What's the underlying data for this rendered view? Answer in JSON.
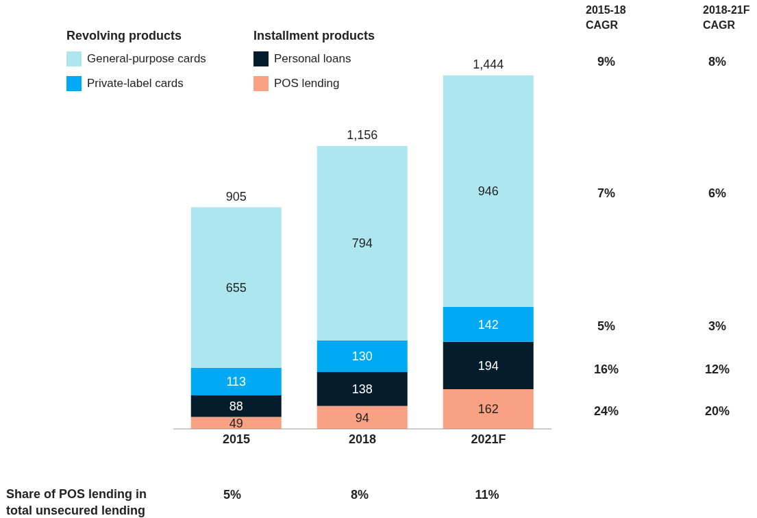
{
  "chart_data": {
    "type": "bar",
    "stacked": true,
    "data_labels": true,
    "legend": "top left",
    "categories": [
      "2015",
      "2018",
      "2021F"
    ],
    "series": [
      {
        "name": "POS lending",
        "color": "#f9a183",
        "values": [
          49,
          94,
          162
        ]
      },
      {
        "name": "Personal loans",
        "color": "#051c2c",
        "values": [
          88,
          138,
          194
        ]
      },
      {
        "name": "Private-label cards",
        "color": "#00a9f4",
        "values": [
          113,
          130,
          142
        ]
      },
      {
        "name": "General-purpose cards",
        "color": "#aee6ef",
        "values": [
          655,
          794,
          946
        ]
      }
    ],
    "totals": [
      "905",
      "1,156",
      "1,444"
    ],
    "annotations": [
      "Revolving products",
      "Installment products",
      "2015-18 CAGR",
      "2018-21F CAGR",
      "9%",
      "8%",
      "7%",
      "6%",
      "5%",
      "3%",
      "16%",
      "12%",
      "24%",
      "20%",
      "Share of POS lending in total unsecured lending",
      "5%",
      "8%",
      "11%"
    ]
  }
}
